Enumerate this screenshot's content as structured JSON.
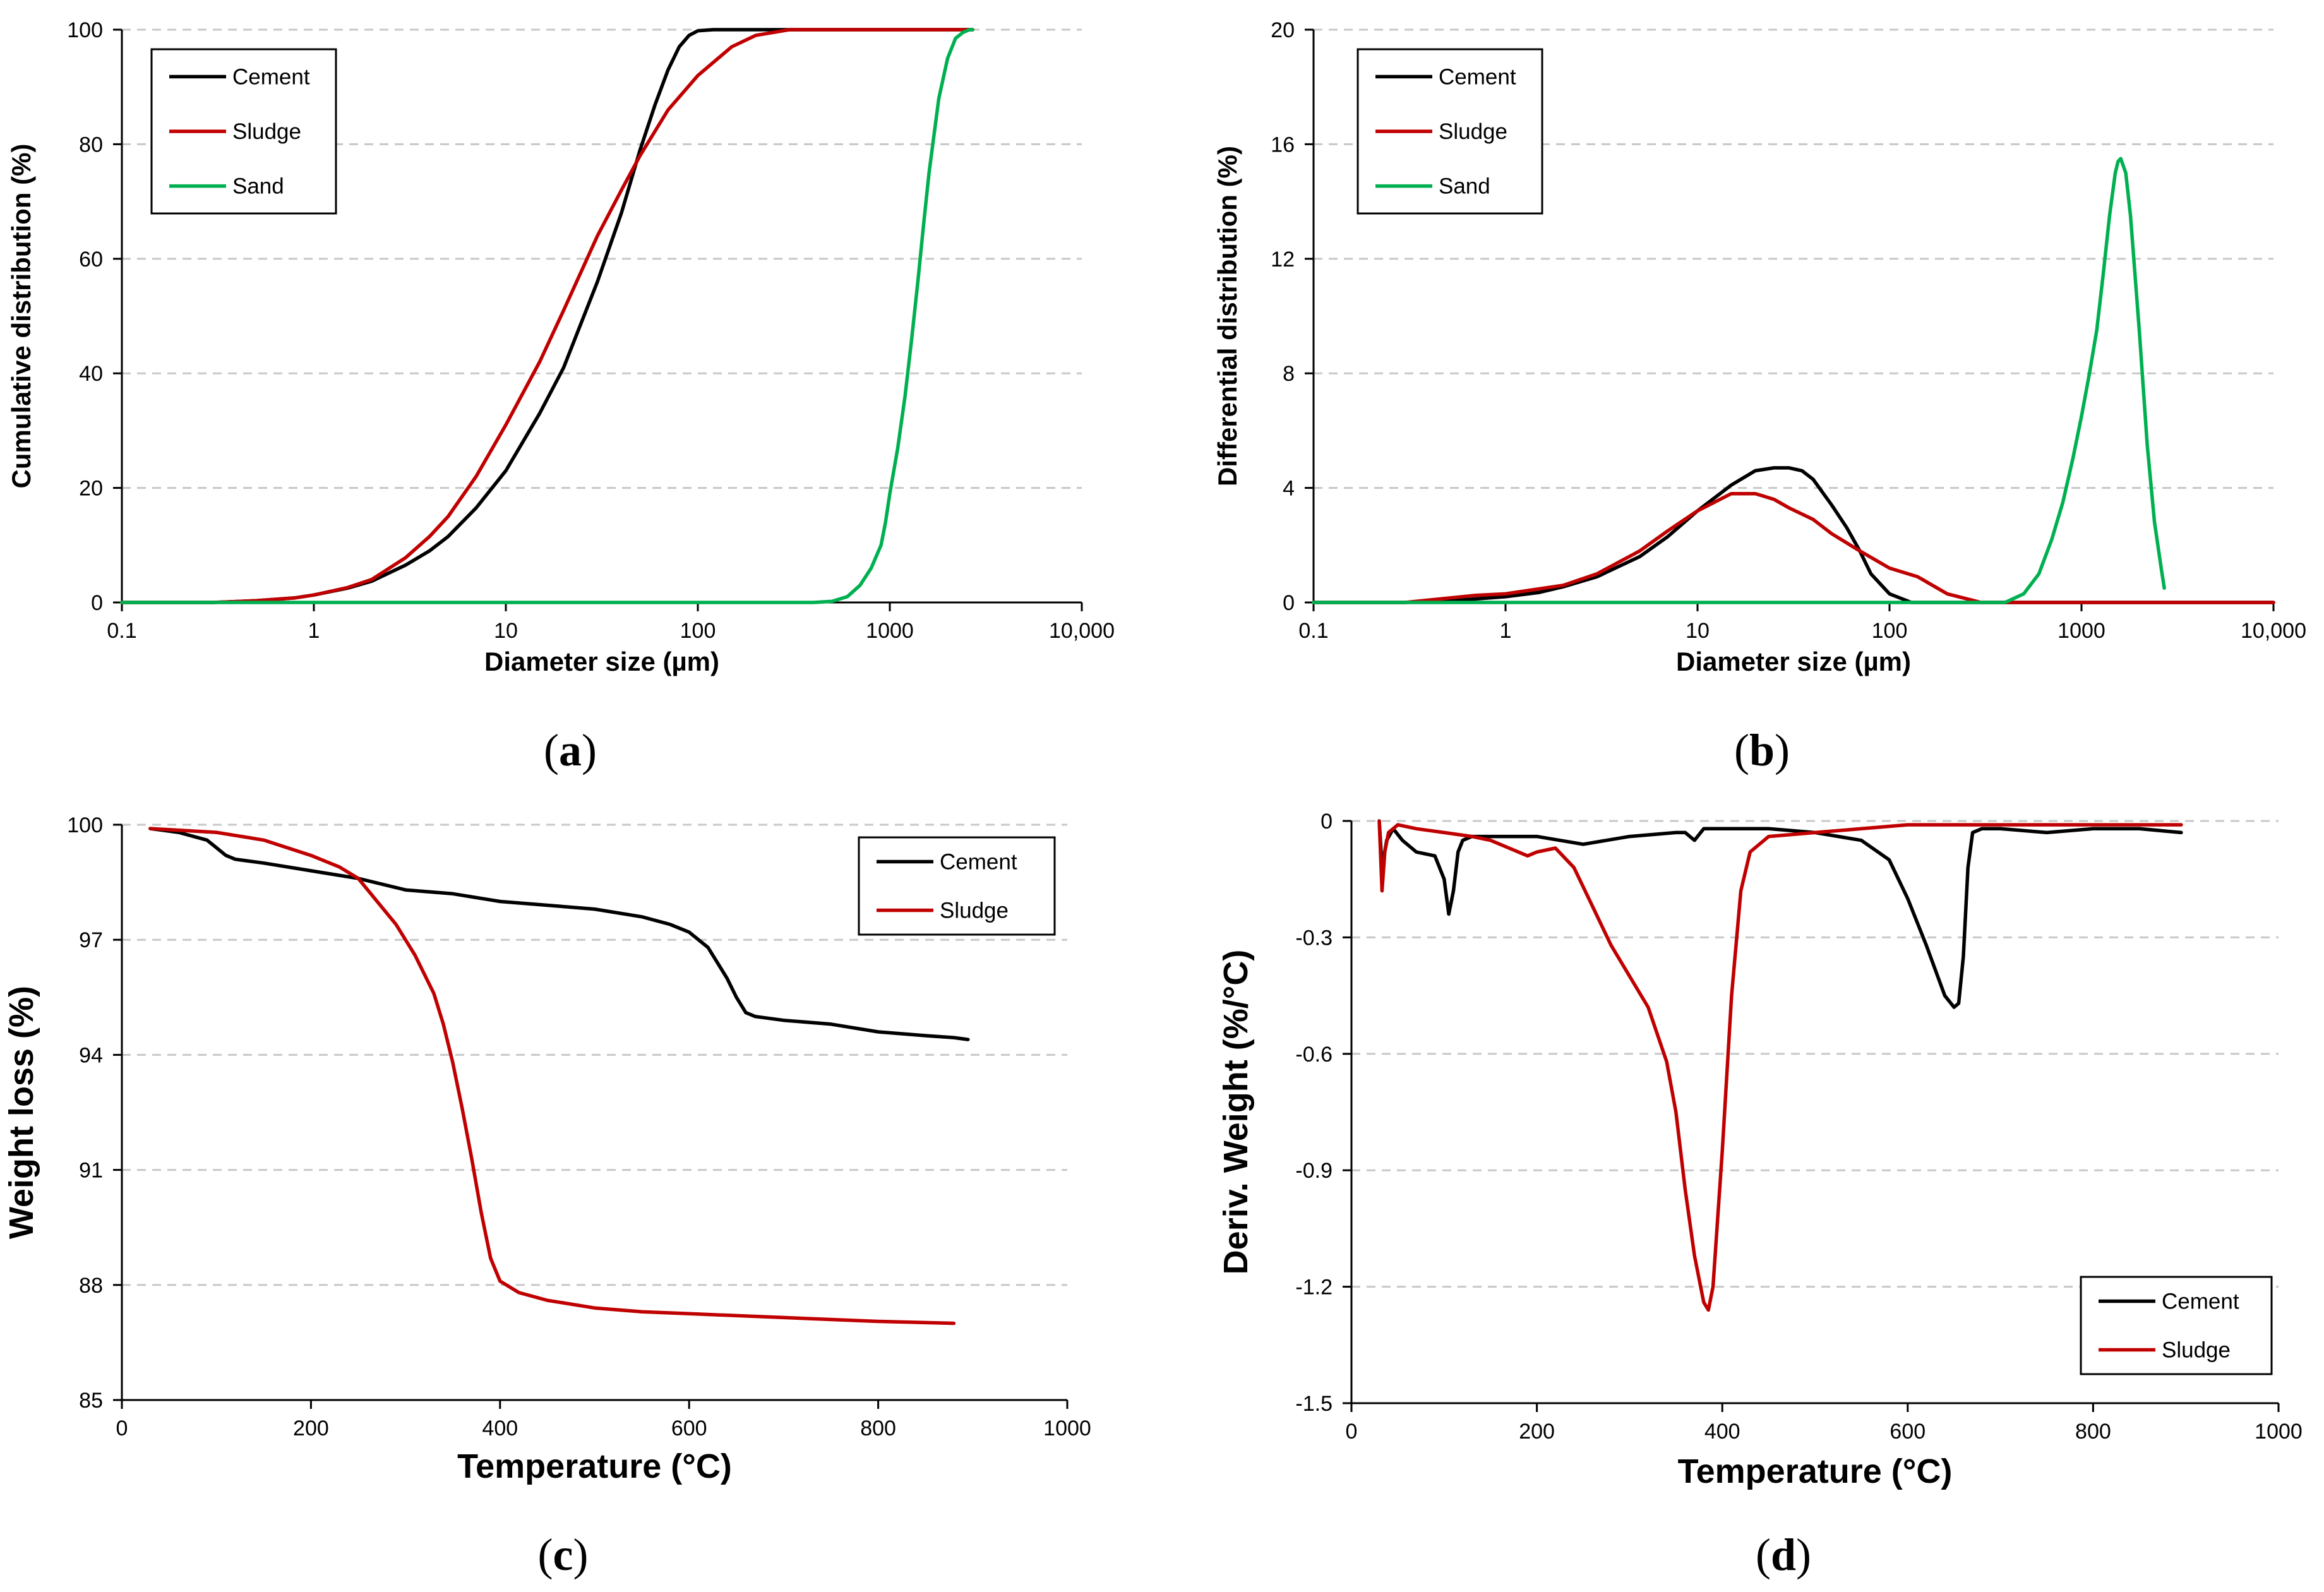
{
  "chart_data": [
    {
      "id": "a",
      "type": "line",
      "panel_label": "a",
      "xscale": "log",
      "xlim": [
        0.1,
        10000
      ],
      "ylim": [
        0,
        100
      ],
      "xticks": [
        0.1,
        1,
        10,
        100,
        1000,
        10000
      ],
      "xtick_labels": [
        "0.1",
        "1",
        "10",
        "100",
        "1000",
        "10,000"
      ],
      "yticks": [
        0,
        20,
        40,
        60,
        80,
        100
      ],
      "ytick_labels": [
        "0",
        "20",
        "40",
        "60",
        "80",
        "100"
      ],
      "xlabel": "Diameter size (µm)",
      "ylabel": "Cumulative distribution (%)",
      "legend_position": "top-left",
      "series": [
        {
          "name": "Cement",
          "color": "#000000",
          "x": [
            0.1,
            0.3,
            0.5,
            0.8,
            1,
            1.5,
            2,
            3,
            4,
            5,
            7,
            10,
            15,
            20,
            30,
            40,
            50,
            60,
            70,
            80,
            90,
            100,
            120,
            150,
            200,
            300,
            500,
            1000,
            2700
          ],
          "y": [
            0,
            0,
            0.3,
            0.8,
            1.3,
            2.5,
            3.7,
            6.5,
            9,
            11.5,
            16.5,
            23,
            33,
            41,
            56,
            68,
            79,
            87,
            93,
            97,
            99,
            99.8,
            100,
            100,
            100,
            100,
            100,
            100,
            100
          ]
        },
        {
          "name": "Sludge",
          "color": "#c00000",
          "x": [
            0.1,
            0.3,
            0.5,
            0.8,
            1,
            1.5,
            2,
            3,
            4,
            5,
            7,
            10,
            15,
            20,
            30,
            40,
            50,
            70,
            100,
            150,
            200,
            300,
            500,
            1000,
            2700
          ],
          "y": [
            0,
            0,
            0.3,
            0.8,
            1.3,
            2.6,
            4,
            7.8,
            11.5,
            15,
            22,
            31,
            42,
            51,
            64,
            72,
            78,
            86,
            92,
            97,
            99,
            100,
            100,
            100,
            100
          ]
        },
        {
          "name": "Sand",
          "color": "#00b050",
          "x": [
            0.1,
            100,
            400,
            500,
            600,
            700,
            800,
            900,
            950,
            1000,
            1100,
            1200,
            1300,
            1400,
            1500,
            1600,
            1800,
            2000,
            2200,
            2400,
            2600,
            2700
          ],
          "y": [
            0,
            0,
            0,
            0.2,
            1,
            3,
            6,
            10,
            14,
            19,
            27,
            36,
            46,
            56,
            66,
            75,
            88,
            95,
            98.5,
            99.5,
            100,
            100
          ]
        }
      ]
    },
    {
      "id": "b",
      "type": "line",
      "panel_label": "b",
      "xscale": "log",
      "xlim": [
        0.1,
        10000
      ],
      "ylim": [
        0,
        20
      ],
      "xticks": [
        0.1,
        1,
        10,
        100,
        1000,
        10000
      ],
      "xtick_labels": [
        "0.1",
        "1",
        "10",
        "100",
        "1000",
        "10,000"
      ],
      "yticks": [
        0,
        4,
        8,
        12,
        16,
        20
      ],
      "ytick_labels": [
        "0",
        "4",
        "8",
        "12",
        "16",
        "20"
      ],
      "xlabel": "Diameter size (µm)",
      "ylabel": "Differential distribution (%)",
      "legend_position": "top-left",
      "series": [
        {
          "name": "Cement",
          "color": "#000000",
          "x": [
            0.1,
            0.3,
            0.5,
            1,
            1.5,
            2,
            3,
            5,
            7,
            10,
            15,
            20,
            25,
            30,
            35,
            40,
            50,
            60,
            70,
            80,
            100,
            130,
            10000
          ],
          "y": [
            0,
            0,
            0.05,
            0.2,
            0.35,
            0.55,
            0.9,
            1.6,
            2.3,
            3.2,
            4.1,
            4.6,
            4.7,
            4.7,
            4.6,
            4.3,
            3.4,
            2.6,
            1.8,
            1.0,
            0.3,
            0,
            0
          ]
        },
        {
          "name": "Sludge",
          "color": "#c00000",
          "x": [
            0.1,
            0.3,
            0.5,
            0.7,
            1,
            2,
            3,
            5,
            7,
            10,
            15,
            20,
            25,
            30,
            40,
            50,
            70,
            100,
            140,
            200,
            300,
            400,
            10000
          ],
          "y": [
            0,
            0,
            0.15,
            0.25,
            0.3,
            0.6,
            1.0,
            1.8,
            2.5,
            3.2,
            3.8,
            3.8,
            3.6,
            3.3,
            2.9,
            2.4,
            1.8,
            1.2,
            0.9,
            0.3,
            0,
            0,
            0
          ]
        },
        {
          "name": "Sand",
          "color": "#00b050",
          "x": [
            0.1,
            100,
            400,
            500,
            600,
            700,
            800,
            900,
            1000,
            1100,
            1200,
            1300,
            1400,
            1500,
            1550,
            1600,
            1700,
            1800,
            2000,
            2200,
            2400,
            2600,
            2700
          ],
          "y": [
            0,
            0,
            0,
            0.3,
            1,
            2.2,
            3.5,
            5,
            6.5,
            8,
            9.5,
            11.5,
            13.5,
            15,
            15.4,
            15.5,
            15,
            13.5,
            9.5,
            5.5,
            2.8,
            1.2,
            0.5
          ]
        }
      ]
    },
    {
      "id": "c",
      "type": "line",
      "panel_label": "c",
      "xscale": "linear",
      "xlim": [
        0,
        1000
      ],
      "ylim": [
        85,
        100
      ],
      "xticks": [
        0,
        200,
        400,
        600,
        800,
        1000
      ],
      "xtick_labels": [
        "0",
        "200",
        "400",
        "600",
        "800",
        "1000"
      ],
      "yticks": [
        85,
        88,
        91,
        94,
        97,
        100
      ],
      "ytick_labels": [
        "85",
        "88",
        "91",
        "94",
        "97",
        "100"
      ],
      "xlabel": "Temperature (°C)",
      "ylabel": "Weight loss (%)",
      "legend_position": "top-right",
      "series": [
        {
          "name": "Cement",
          "color": "#000000",
          "x": [
            30,
            60,
            90,
            100,
            110,
            120,
            150,
            200,
            250,
            300,
            350,
            400,
            450,
            500,
            550,
            580,
            600,
            620,
            640,
            650,
            660,
            670,
            700,
            750,
            800,
            850,
            880,
            895
          ],
          "y": [
            99.9,
            99.8,
            99.6,
            99.4,
            99.2,
            99.1,
            99.0,
            98.8,
            98.6,
            98.3,
            98.2,
            98.0,
            97.9,
            97.8,
            97.6,
            97.4,
            97.2,
            96.8,
            96.0,
            95.5,
            95.1,
            95.0,
            94.9,
            94.8,
            94.6,
            94.5,
            94.45,
            94.4
          ]
        },
        {
          "name": "Sludge",
          "color": "#c00000",
          "x": [
            30,
            100,
            150,
            200,
            230,
            250,
            270,
            290,
            310,
            330,
            340,
            350,
            360,
            370,
            380,
            390,
            400,
            420,
            450,
            500,
            550,
            600,
            700,
            800,
            880
          ],
          "y": [
            99.9,
            99.8,
            99.6,
            99.2,
            98.9,
            98.6,
            98.0,
            97.4,
            96.6,
            95.6,
            94.8,
            93.8,
            92.6,
            91.3,
            89.9,
            88.7,
            88.1,
            87.8,
            87.6,
            87.4,
            87.3,
            87.25,
            87.15,
            87.05,
            87.0
          ]
        }
      ]
    },
    {
      "id": "d",
      "type": "line",
      "panel_label": "d",
      "xscale": "linear",
      "xlim": [
        0,
        1000
      ],
      "ylim": [
        -1.5,
        0
      ],
      "xticks": [
        0,
        200,
        400,
        600,
        800,
        1000
      ],
      "xtick_labels": [
        "0",
        "200",
        "400",
        "600",
        "800",
        "1000"
      ],
      "yticks": [
        -1.5,
        -1.2,
        -0.9,
        -0.6,
        -0.3,
        0
      ],
      "ytick_labels": [
        "-1.5",
        "-1.2",
        "-0.9",
        "-0.6",
        "-0.3",
        "0"
      ],
      "xlabel": "Temperature (°C)",
      "ylabel": "Deriv. Weight (%/°C)",
      "legend_position": "bottom-right",
      "series": [
        {
          "name": "Cement",
          "color": "#000000",
          "x": [
            30,
            33,
            38,
            45,
            55,
            70,
            90,
            100,
            105,
            110,
            115,
            120,
            130,
            150,
            200,
            250,
            300,
            350,
            360,
            370,
            380,
            400,
            450,
            500,
            550,
            580,
            600,
            620,
            640,
            650,
            655,
            660,
            665,
            670,
            680,
            700,
            750,
            800,
            850,
            895
          ],
          "y": [
            0,
            -0.12,
            -0.05,
            -0.02,
            -0.05,
            -0.08,
            -0.09,
            -0.15,
            -0.24,
            -0.18,
            -0.08,
            -0.05,
            -0.04,
            -0.04,
            -0.04,
            -0.06,
            -0.04,
            -0.03,
            -0.03,
            -0.05,
            -0.02,
            -0.02,
            -0.02,
            -0.03,
            -0.05,
            -0.1,
            -0.2,
            -0.32,
            -0.45,
            -0.48,
            -0.47,
            -0.35,
            -0.12,
            -0.03,
            -0.02,
            -0.02,
            -0.03,
            -0.02,
            -0.02,
            -0.03
          ]
        },
        {
          "name": "Sludge",
          "color": "#c00000",
          "x": [
            30,
            33,
            36,
            40,
            50,
            70,
            100,
            130,
            150,
            170,
            190,
            200,
            220,
            240,
            260,
            280,
            300,
            320,
            340,
            350,
            360,
            370,
            380,
            385,
            390,
            400,
            410,
            420,
            430,
            450,
            500,
            550,
            600,
            700,
            800,
            895
          ],
          "y": [
            0,
            -0.18,
            -0.08,
            -0.03,
            -0.01,
            -0.02,
            -0.03,
            -0.04,
            -0.05,
            -0.07,
            -0.09,
            -0.08,
            -0.07,
            -0.12,
            -0.22,
            -0.32,
            -0.4,
            -0.48,
            -0.62,
            -0.75,
            -0.95,
            -1.12,
            -1.24,
            -1.26,
            -1.2,
            -0.85,
            -0.45,
            -0.18,
            -0.08,
            -0.04,
            -0.03,
            -0.02,
            -0.01,
            -0.01,
            -0.01,
            -0.01
          ]
        }
      ]
    }
  ]
}
